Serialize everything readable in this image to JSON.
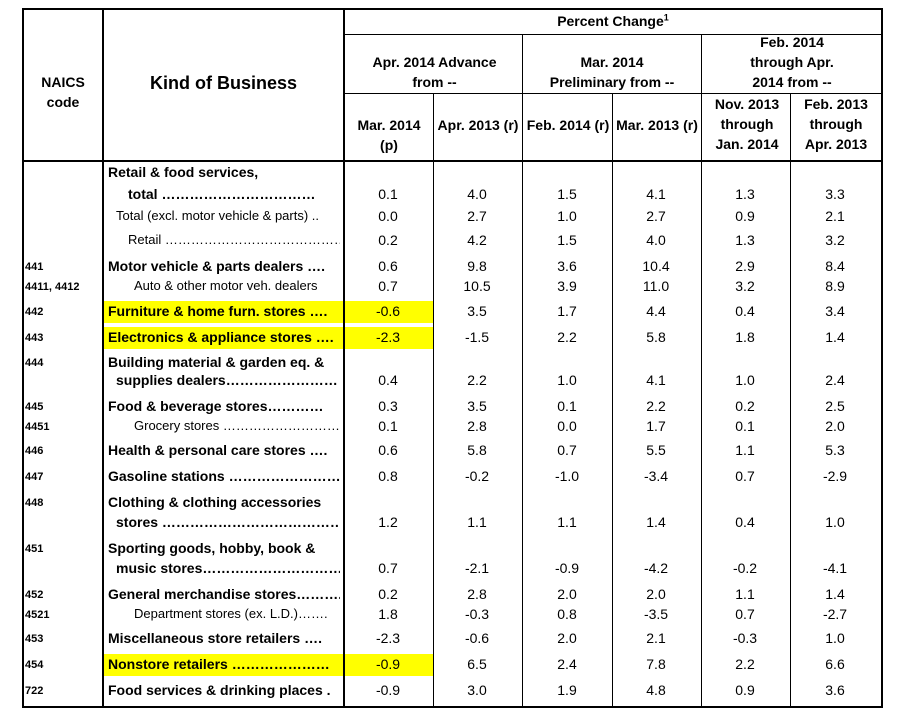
{
  "header": {
    "naics_code": "NAICS code",
    "kind_of_business": "Kind of Business",
    "percent_change": "Percent Change",
    "footnote_mark": "1",
    "groups": [
      "Apr. 2014 Advance from --",
      "Mar. 2014 Preliminary from --",
      "Feb. 2014 through Apr. 2014 from --"
    ],
    "columns": [
      "Mar. 2014 (p)",
      "Apr. 2013 (r)",
      "Feb. 2014 (r)",
      "Mar. 2013 (r)",
      "Nov. 2013 through Jan. 2014",
      "Feb. 2013 through Apr. 2013"
    ]
  },
  "rows": [
    {
      "code": "",
      "name": "Retail & food services,",
      "values": [
        "",
        "",
        "",
        "",
        "",
        ""
      ]
    },
    {
      "code": "",
      "name": "total ……………………………",
      "values": [
        "0.1",
        "4.0",
        "1.5",
        "4.1",
        "1.3",
        "3.3"
      ]
    },
    {
      "code": "",
      "name": "Total (excl. motor vehicle & parts) ..",
      "values": [
        "0.0",
        "2.7",
        "1.0",
        "2.7",
        "0.9",
        "2.1"
      ]
    },
    {
      "code": "",
      "name": "Retail ……………………………………",
      "values": [
        "0.2",
        "4.2",
        "1.5",
        "4.0",
        "1.3",
        "3.2"
      ]
    },
    {
      "code": "441",
      "name": "Motor vehicle & parts dealers ….",
      "values": [
        "0.6",
        "9.8",
        "3.6",
        "10.4",
        "2.9",
        "8.4"
      ]
    },
    {
      "code": "4411, 4412",
      "name": "Auto & other motor veh. dealers",
      "values": [
        "0.7",
        "10.5",
        "3.9",
        "11.0",
        "3.2",
        "8.9"
      ]
    },
    {
      "code": "442",
      "name": "Furniture & home furn. stores ….",
      "values": [
        "-0.6",
        "3.5",
        "1.7",
        "4.4",
        "0.4",
        "3.4"
      ]
    },
    {
      "code": "443",
      "name": "Electronics & appliance stores ….",
      "values": [
        "-2.3",
        "-1.5",
        "2.2",
        "5.8",
        "1.8",
        "1.4"
      ]
    },
    {
      "code": "444",
      "name": "Building material & garden eq. &",
      "values": [
        "",
        "",
        "",
        "",
        "",
        ""
      ]
    },
    {
      "code": "",
      "name": "supplies dealers……………………",
      "values": [
        "0.4",
        "2.2",
        "1.0",
        "4.1",
        "1.0",
        "2.4"
      ]
    },
    {
      "code": "445",
      "name": "Food & beverage stores…………",
      "values": [
        "0.3",
        "3.5",
        "0.1",
        "2.2",
        "0.2",
        "2.5"
      ]
    },
    {
      "code": "4451",
      "name": "Grocery stores ………………………",
      "values": [
        "0.1",
        "2.8",
        "0.0",
        "1.7",
        "0.1",
        "2.0"
      ]
    },
    {
      "code": "446",
      "name": "Health & personal care stores ….",
      "values": [
        "0.6",
        "5.8",
        "0.7",
        "5.5",
        "1.1",
        "5.3"
      ]
    },
    {
      "code": "447",
      "name": "Gasoline stations ……………………",
      "values": [
        "0.8",
        "-0.2",
        "-1.0",
        "-3.4",
        "0.7",
        "-2.9"
      ]
    },
    {
      "code": "448",
      "name": "Clothing & clothing accessories",
      "values": [
        "",
        "",
        "",
        "",
        "",
        ""
      ]
    },
    {
      "code": "",
      "name": "stores ……………………………………",
      "values": [
        "1.2",
        "1.1",
        "1.1",
        "1.4",
        "0.4",
        "1.0"
      ]
    },
    {
      "code": "451",
      "name": "Sporting goods, hobby, book &",
      "values": [
        "",
        "",
        "",
        "",
        "",
        ""
      ]
    },
    {
      "code": "",
      "name": "music stores………………………………",
      "values": [
        "0.7",
        "-2.1",
        "-0.9",
        "-4.2",
        "-0.2",
        "-4.1"
      ]
    },
    {
      "code": "452",
      "name": "General merchandise stores……….",
      "values": [
        "0.2",
        "2.8",
        "2.0",
        "2.0",
        "1.1",
        "1.4"
      ]
    },
    {
      "code": "4521",
      "name": "Department stores (ex. L.D.)…….",
      "values": [
        "1.8",
        "-0.3",
        "0.8",
        "-3.5",
        "0.7",
        "-2.7"
      ]
    },
    {
      "code": "453",
      "name": "Miscellaneous store retailers ….",
      "values": [
        "-2.3",
        "-0.6",
        "2.0",
        "2.1",
        "-0.3",
        "1.0"
      ]
    },
    {
      "code": "454",
      "name": "Nonstore retailers …………………",
      "values": [
        "-0.9",
        "6.5",
        "2.4",
        "7.8",
        "2.2",
        "6.6"
      ]
    },
    {
      "code": "722",
      "name": "Food services & drinking places .",
      "values": [
        "-0.9",
        "3.0",
        "1.9",
        "4.8",
        "0.9",
        "3.6"
      ]
    }
  ],
  "highlight_color": "#ffff00"
}
